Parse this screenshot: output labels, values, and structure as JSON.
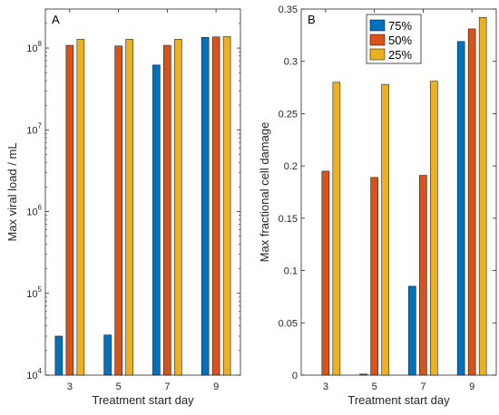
{
  "chart_data": [
    {
      "panel": "A",
      "type": "bar",
      "categories": [
        "3",
        "5",
        "7",
        "9"
      ],
      "xlabel": "Treatment start day",
      "ylabel": "Max viral load / mL",
      "yscale": "log",
      "ylim": [
        10000,
        300000000
      ],
      "yticks": [
        {
          "base": "10",
          "exp": "4",
          "value": 10000
        },
        {
          "base": "10",
          "exp": "5",
          "value": 100000
        },
        {
          "base": "10",
          "exp": "6",
          "value": 1000000
        },
        {
          "base": "10",
          "exp": "7",
          "value": 10000000
        },
        {
          "base": "10",
          "exp": "8",
          "value": 100000000
        }
      ],
      "series": [
        {
          "name": "75%",
          "color": "#0072BD",
          "values": [
            30000,
            31000,
            62000000,
            135000000
          ]
        },
        {
          "name": "50%",
          "color": "#D95319",
          "values": [
            108000000,
            106000000,
            108000000,
            137000000
          ]
        },
        {
          "name": "25%",
          "color": "#EDB120",
          "values": [
            128000000,
            128000000,
            128000000,
            138000000
          ]
        }
      ]
    },
    {
      "panel": "B",
      "type": "bar",
      "categories": [
        "3",
        "5",
        "7",
        "9"
      ],
      "xlabel": "Treatment start day",
      "ylabel": "Max fractional cell damage",
      "yscale": "linear",
      "ylim": [
        0,
        0.35
      ],
      "yticks": [
        "0",
        "0.05",
        "0.1",
        "0.15",
        "0.2",
        "0.25",
        "0.3",
        "0.35"
      ],
      "legend": {
        "placement": "top-center",
        "entries": [
          "75%",
          "50%",
          "25%"
        ]
      },
      "series": [
        {
          "name": "75%",
          "color": "#0072BD",
          "values": [
            0,
            0.001,
            0.085,
            0.319
          ]
        },
        {
          "name": "50%",
          "color": "#D95319",
          "values": [
            0.195,
            0.189,
            0.191,
            0.331
          ]
        },
        {
          "name": "25%",
          "color": "#EDB120",
          "values": [
            0.28,
            0.278,
            0.281,
            0.342
          ]
        }
      ]
    }
  ]
}
